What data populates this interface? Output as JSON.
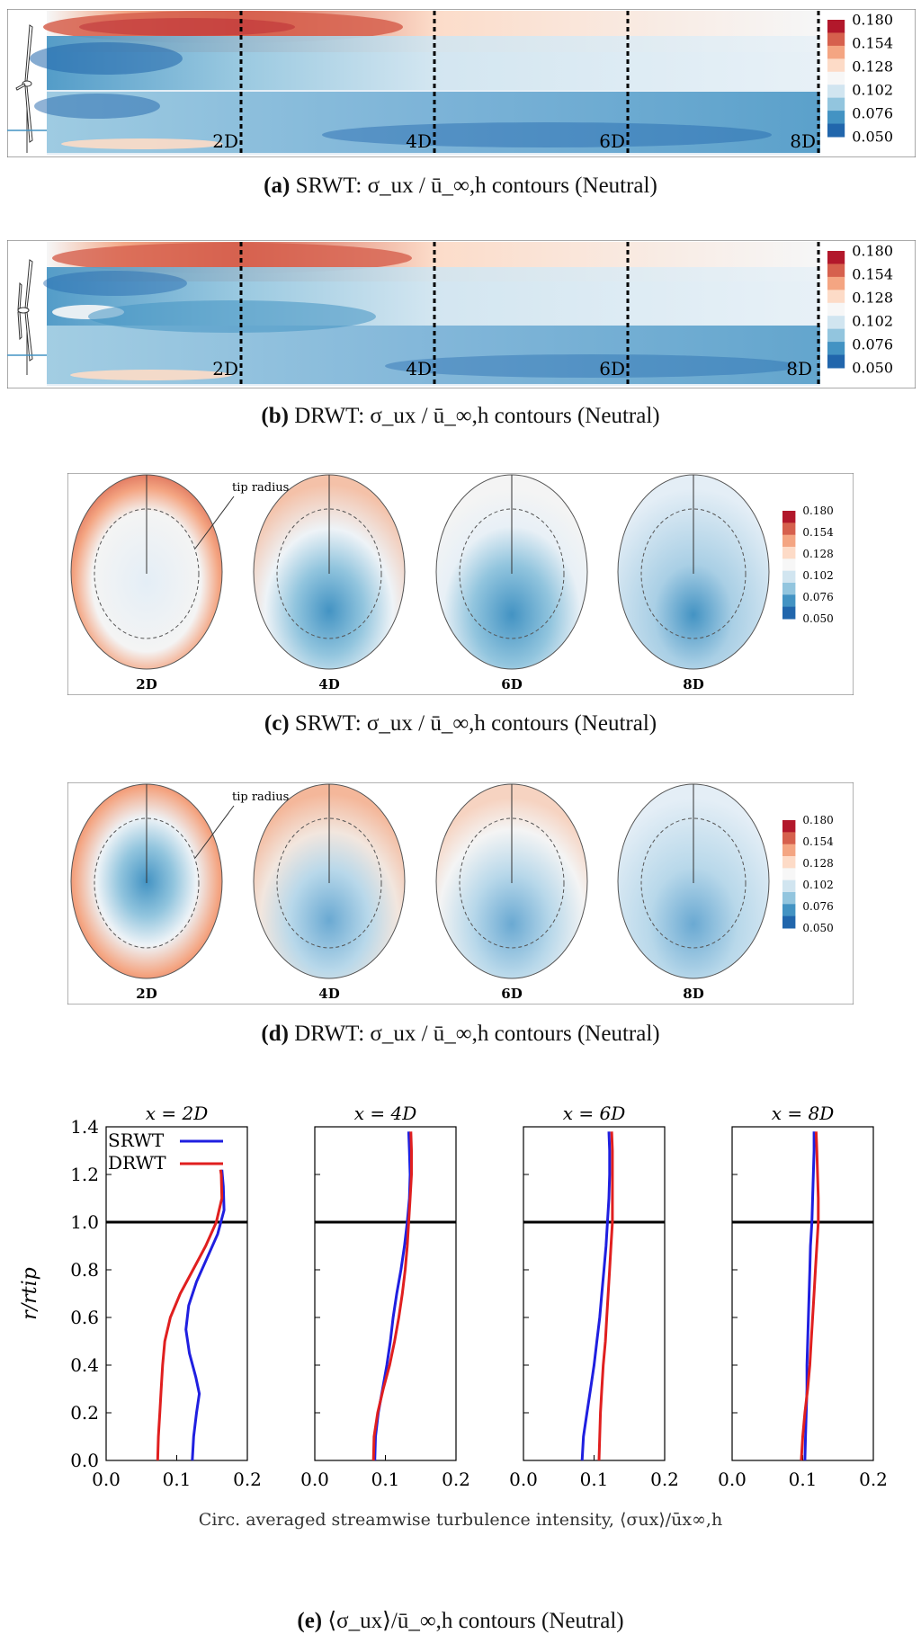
{
  "colorbar": {
    "ticks": [
      "0.180",
      "0.154",
      "0.128",
      "0.102",
      "0.076",
      "0.050"
    ],
    "colors": [
      "#b2182b",
      "#d6604d",
      "#f4a582",
      "#fddbc7",
      "#f7f7f7",
      "#d1e5f0",
      "#92c5de",
      "#4393c3",
      "#2166ac"
    ]
  },
  "panels": {
    "a": {
      "caption_letter": "(a)",
      "caption_text": "SRWT: σ_ux / ū_∞,h contours (Neutral)",
      "distances": [
        "2D",
        "4D",
        "6D",
        "8D"
      ]
    },
    "b": {
      "caption_letter": "(b)",
      "caption_text": "DRWT: σ_ux / ū_∞,h contours (Neutral)",
      "distances": [
        "2D",
        "4D",
        "6D",
        "8D"
      ]
    },
    "c": {
      "caption_letter": "(c)",
      "caption_text": "SRWT: σ_ux / ū_∞,h contours (Neutral)",
      "annotation": "tip radius",
      "distances": [
        "2D",
        "4D",
        "6D",
        "8D"
      ]
    },
    "d": {
      "caption_letter": "(d)",
      "caption_text": "DRWT: σ_ux / ū_∞,h contours (Neutral)",
      "annotation": "tip radius",
      "distances": [
        "2D",
        "4D",
        "6D",
        "8D"
      ]
    },
    "e": {
      "caption_letter": "(e)",
      "caption_text": "⟨σ_ux⟩/ū_∞,h contours (Neutral)"
    }
  },
  "chart_data": {
    "type": "line",
    "xlabel": "Circ. averaged streamwise turbulence intensity, ⟨σux⟩/ūx∞,h",
    "ylabel": "r/rtip",
    "xlim": [
      0.0,
      0.2
    ],
    "ylim": [
      0.0,
      1.4
    ],
    "xticks": [
      "0.0",
      "0.1",
      "0.2"
    ],
    "yticks": [
      "0.0",
      "0.2",
      "0.4",
      "0.6",
      "0.8",
      "1.0",
      "1.2",
      "1.4"
    ],
    "reference_line_y": 1.0,
    "legend": [
      {
        "name": "SRWT",
        "color": "#1f1fe0"
      },
      {
        "name": "DRWT",
        "color": "#e01f1f"
      }
    ],
    "subplots": [
      {
        "title": "x = 2D",
        "series": [
          {
            "name": "SRWT",
            "r": [
              0.0,
              0.1,
              0.2,
              0.28,
              0.35,
              0.45,
              0.55,
              0.65,
              0.75,
              0.85,
              0.95,
              1.05,
              1.15,
              1.22
            ],
            "x": [
              0.122,
              0.124,
              0.128,
              0.132,
              0.127,
              0.118,
              0.113,
              0.117,
              0.128,
              0.143,
              0.158,
              0.167,
              0.166,
              0.164
            ]
          },
          {
            "name": "DRWT",
            "r": [
              0.0,
              0.1,
              0.2,
              0.3,
              0.4,
              0.5,
              0.6,
              0.7,
              0.8,
              0.9,
              1.0,
              1.1,
              1.2,
              1.22
            ],
            "x": [
              0.073,
              0.074,
              0.076,
              0.078,
              0.08,
              0.083,
              0.091,
              0.105,
              0.123,
              0.141,
              0.156,
              0.164,
              0.163,
              0.162
            ]
          }
        ]
      },
      {
        "title": "x = 4D",
        "series": [
          {
            "name": "SRWT",
            "r": [
              0.0,
              0.1,
              0.2,
              0.3,
              0.4,
              0.5,
              0.6,
              0.7,
              0.8,
              0.9,
              1.0,
              1.1,
              1.2,
              1.3,
              1.38
            ],
            "x": [
              0.085,
              0.086,
              0.09,
              0.096,
              0.102,
              0.107,
              0.111,
              0.116,
              0.122,
              0.127,
              0.131,
              0.134,
              0.135,
              0.134,
              0.133
            ]
          },
          {
            "name": "DRWT",
            "r": [
              0.0,
              0.1,
              0.2,
              0.3,
              0.4,
              0.5,
              0.6,
              0.7,
              0.8,
              0.9,
              1.0,
              1.1,
              1.2,
              1.3,
              1.38
            ],
            "x": [
              0.083,
              0.084,
              0.089,
              0.097,
              0.106,
              0.113,
              0.119,
              0.124,
              0.128,
              0.131,
              0.133,
              0.135,
              0.137,
              0.137,
              0.136
            ]
          }
        ]
      },
      {
        "title": "x = 6D",
        "series": [
          {
            "name": "SRWT",
            "r": [
              0.0,
              0.1,
              0.2,
              0.3,
              0.4,
              0.5,
              0.6,
              0.7,
              0.8,
              0.9,
              1.0,
              1.1,
              1.2,
              1.3,
              1.38
            ],
            "x": [
              0.083,
              0.085,
              0.09,
              0.095,
              0.1,
              0.104,
              0.108,
              0.111,
              0.114,
              0.117,
              0.119,
              0.121,
              0.122,
              0.122,
              0.121
            ]
          },
          {
            "name": "DRWT",
            "r": [
              0.0,
              0.1,
              0.2,
              0.3,
              0.4,
              0.5,
              0.6,
              0.7,
              0.8,
              0.9,
              1.0,
              1.1,
              1.2,
              1.3,
              1.38
            ],
            "x": [
              0.107,
              0.108,
              0.109,
              0.111,
              0.113,
              0.116,
              0.118,
              0.12,
              0.122,
              0.124,
              0.126,
              0.126,
              0.126,
              0.126,
              0.125
            ]
          }
        ]
      },
      {
        "title": "x = 8D",
        "series": [
          {
            "name": "SRWT",
            "r": [
              0.0,
              0.1,
              0.2,
              0.3,
              0.4,
              0.5,
              0.6,
              0.7,
              0.8,
              0.9,
              1.0,
              1.1,
              1.2,
              1.3,
              1.38
            ],
            "x": [
              0.103,
              0.104,
              0.105,
              0.106,
              0.106,
              0.107,
              0.108,
              0.109,
              0.11,
              0.111,
              0.113,
              0.114,
              0.115,
              0.116,
              0.116
            ]
          },
          {
            "name": "DRWT",
            "r": [
              0.0,
              0.1,
              0.2,
              0.3,
              0.4,
              0.5,
              0.6,
              0.7,
              0.8,
              0.9,
              1.0,
              1.1,
              1.2,
              1.3,
              1.38
            ],
            "x": [
              0.098,
              0.1,
              0.103,
              0.107,
              0.11,
              0.112,
              0.114,
              0.116,
              0.118,
              0.12,
              0.122,
              0.122,
              0.121,
              0.12,
              0.119
            ]
          }
        ]
      }
    ]
  }
}
